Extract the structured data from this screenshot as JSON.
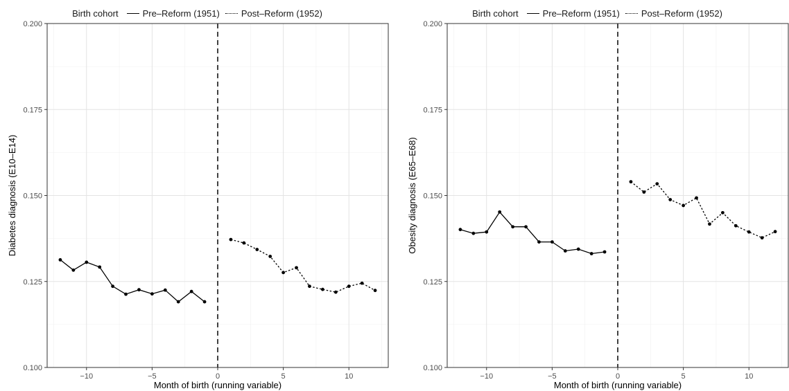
{
  "legend": {
    "title": "Birth cohort",
    "items": [
      "Pre–Reform (1951)",
      "Post–Reform (1952)"
    ]
  },
  "chart_data": [
    {
      "type": "line",
      "xlabel": "Month of birth (running variable)",
      "ylabel": "Diabetes diagnosis (E10–E14)",
      "xlim": [
        -13,
        13
      ],
      "ylim": [
        0.1,
        0.2
      ],
      "xticks": [
        -10,
        -5,
        0,
        5,
        10
      ],
      "xtick_labels": [
        "−10",
        "−5",
        "0",
        "5",
        "10"
      ],
      "yticks": [
        0.1,
        0.125,
        0.15,
        0.175,
        0.2
      ],
      "ytick_labels": [
        "0.100",
        "0.125",
        "0.150",
        "0.175",
        "0.200"
      ],
      "cutoff": 0,
      "grid": true,
      "legend_position": "top",
      "series": [
        {
          "name": "Pre–Reform (1951)",
          "line_style": "solid",
          "x": [
            -12,
            -11,
            -10,
            -9,
            -8,
            -7,
            -6,
            -5,
            -4,
            -3,
            -2,
            -1
          ],
          "y": [
            0.1313,
            0.1283,
            0.1306,
            0.1292,
            0.1236,
            0.1213,
            0.1226,
            0.1214,
            0.1225,
            0.1191,
            0.1221,
            0.1191
          ]
        },
        {
          "name": "Post–Reform (1952)",
          "line_style": "dotted",
          "x": [
            1,
            2,
            3,
            4,
            5,
            6,
            7,
            8,
            9,
            10,
            11,
            12
          ],
          "y": [
            0.1372,
            0.1362,
            0.1343,
            0.1323,
            0.1276,
            0.129,
            0.1236,
            0.1227,
            0.1219,
            0.1236,
            0.1245,
            0.1224
          ]
        }
      ]
    },
    {
      "type": "line",
      "xlabel": "Month of birth (running variable)",
      "ylabel": "Obesity diagnosis (E65–E68)",
      "xlim": [
        -13,
        13
      ],
      "ylim": [
        0.1,
        0.2
      ],
      "xticks": [
        -10,
        -5,
        0,
        5,
        10
      ],
      "xtick_labels": [
        "−10",
        "−5",
        "0",
        "5",
        "10"
      ],
      "yticks": [
        0.1,
        0.125,
        0.15,
        0.175,
        0.2
      ],
      "ytick_labels": [
        "0.100",
        "0.125",
        "0.150",
        "0.175",
        "0.200"
      ],
      "cutoff": 0,
      "grid": true,
      "legend_position": "top",
      "series": [
        {
          "name": "Pre–Reform (1951)",
          "line_style": "solid",
          "x": [
            -12,
            -11,
            -10,
            -9,
            -8,
            -7,
            -6,
            -5,
            -4,
            -3,
            -2,
            -1
          ],
          "y": [
            0.1401,
            0.139,
            0.1394,
            0.1452,
            0.1409,
            0.1409,
            0.1365,
            0.1365,
            0.1339,
            0.1344,
            0.1331,
            0.1336
          ]
        },
        {
          "name": "Post–Reform (1952)",
          "line_style": "dotted",
          "x": [
            1,
            2,
            3,
            4,
            5,
            6,
            7,
            8,
            9,
            10,
            11,
            12
          ],
          "y": [
            0.154,
            0.151,
            0.1534,
            0.1488,
            0.1471,
            0.1493,
            0.1417,
            0.145,
            0.1412,
            0.1394,
            0.1377,
            0.1395
          ]
        }
      ]
    }
  ]
}
